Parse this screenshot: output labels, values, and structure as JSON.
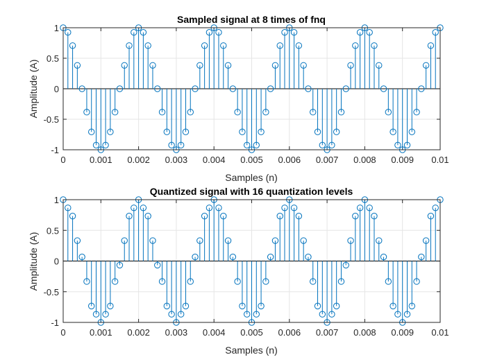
{
  "chart_data": [
    {
      "type": "stem",
      "title": "Sampled signal at 8 times of fnq",
      "xlabel": "Samples (n)",
      "ylabel": "Amplitude (A)",
      "xlim": [
        0,
        0.01
      ],
      "ylim": [
        -1,
        1
      ],
      "xticks": [
        "0",
        "0.001",
        "0.002",
        "0.003",
        "0.004",
        "0.005",
        "0.006",
        "0.007",
        "0.008",
        "0.009",
        "0.01"
      ],
      "yticks": [
        "-1",
        "-0.5",
        "0",
        "0.5",
        "1"
      ],
      "grid": true,
      "x": [
        0,
        0.000125,
        0.00025,
        0.000375,
        0.0005,
        0.000625,
        0.00075,
        0.000875,
        0.001,
        0.001125,
        0.00125,
        0.001375,
        0.0015,
        0.001625,
        0.00175,
        0.001875,
        0.002,
        0.002125,
        0.00225,
        0.002375,
        0.0025,
        0.002625,
        0.00275,
        0.002875,
        0.003,
        0.003125,
        0.00325,
        0.003375,
        0.0035,
        0.003625,
        0.00375,
        0.003875,
        0.004,
        0.004125,
        0.00425,
        0.004375,
        0.0045,
        0.004625,
        0.00475,
        0.004875,
        0.005,
        0.005125,
        0.00525,
        0.005375,
        0.0055,
        0.005625,
        0.00575,
        0.005875,
        0.006,
        0.006125,
        0.00625,
        0.006375,
        0.0065,
        0.006625,
        0.00675,
        0.006875,
        0.007,
        0.007125,
        0.00725,
        0.007375,
        0.0075,
        0.007625,
        0.00775,
        0.007875,
        0.008,
        0.008125,
        0.00825,
        0.008375,
        0.0085,
        0.008625,
        0.00875,
        0.008875,
        0.009,
        0.009125,
        0.00925,
        0.009375,
        0.0095,
        0.009625,
        0.00975,
        0.009875,
        0.01
      ],
      "values": [
        1,
        0.924,
        0.707,
        0.383,
        0,
        -0.383,
        -0.707,
        -0.924,
        -1,
        -0.924,
        -0.707,
        -0.383,
        0,
        0.383,
        0.707,
        0.924,
        1,
        0.924,
        0.707,
        0.383,
        0,
        -0.383,
        -0.707,
        -0.924,
        -1,
        -0.924,
        -0.707,
        -0.383,
        0,
        0.383,
        0.707,
        0.924,
        1,
        0.924,
        0.707,
        0.383,
        0,
        -0.383,
        -0.707,
        -0.924,
        -1,
        -0.924,
        -0.707,
        -0.383,
        0,
        0.383,
        0.707,
        0.924,
        1,
        0.924,
        0.707,
        0.383,
        0,
        -0.383,
        -0.707,
        -0.924,
        -1,
        -0.924,
        -0.707,
        -0.383,
        0,
        0.383,
        0.707,
        0.924,
        1,
        0.924,
        0.707,
        0.383,
        0,
        -0.383,
        -0.707,
        -0.924,
        -1,
        -0.924,
        -0.707,
        -0.383,
        0,
        0.383,
        0.707,
        0.924,
        1
      ]
    },
    {
      "type": "stem",
      "title": "Quantized signal with 16 quantization levels",
      "xlabel": "Samples (n)",
      "ylabel": "Amplitude (A)",
      "xlim": [
        0,
        0.01
      ],
      "ylim": [
        -1,
        1
      ],
      "xticks": [
        "0",
        "0.001",
        "0.002",
        "0.003",
        "0.004",
        "0.005",
        "0.006",
        "0.007",
        "0.008",
        "0.009",
        "0.01"
      ],
      "yticks": [
        "-1",
        "-0.5",
        "0",
        "0.5",
        "1"
      ],
      "grid": true,
      "x": [
        0,
        0.000125,
        0.00025,
        0.000375,
        0.0005,
        0.000625,
        0.00075,
        0.000875,
        0.001,
        0.001125,
        0.00125,
        0.001375,
        0.0015,
        0.001625,
        0.00175,
        0.001875,
        0.002,
        0.002125,
        0.00225,
        0.002375,
        0.0025,
        0.002625,
        0.00275,
        0.002875,
        0.003,
        0.003125,
        0.00325,
        0.003375,
        0.0035,
        0.003625,
        0.00375,
        0.003875,
        0.004,
        0.004125,
        0.00425,
        0.004375,
        0.0045,
        0.004625,
        0.00475,
        0.004875,
        0.005,
        0.005125,
        0.00525,
        0.005375,
        0.0055,
        0.005625,
        0.00575,
        0.005875,
        0.006,
        0.006125,
        0.00625,
        0.006375,
        0.0065,
        0.006625,
        0.00675,
        0.006875,
        0.007,
        0.007125,
        0.00725,
        0.007375,
        0.0075,
        0.007625,
        0.00775,
        0.007875,
        0.008,
        0.008125,
        0.00825,
        0.008375,
        0.0085,
        0.008625,
        0.00875,
        0.008875,
        0.009,
        0.009125,
        0.00925,
        0.009375,
        0.0095,
        0.009625,
        0.00975,
        0.009875,
        0.01
      ],
      "values": [
        1,
        0.867,
        0.733,
        0.333,
        0.067,
        -0.333,
        -0.733,
        -0.867,
        -1,
        -0.867,
        -0.733,
        -0.333,
        -0.067,
        0.333,
        0.733,
        0.867,
        1,
        0.867,
        0.733,
        0.333,
        -0.067,
        -0.333,
        -0.733,
        -0.867,
        -1,
        -0.867,
        -0.733,
        -0.333,
        0.067,
        0.333,
        0.733,
        0.867,
        1,
        0.867,
        0.733,
        0.333,
        0.067,
        -0.333,
        -0.733,
        -0.867,
        -1,
        -0.867,
        -0.733,
        -0.333,
        0.067,
        0.333,
        0.733,
        0.867,
        1,
        0.867,
        0.733,
        0.333,
        0.067,
        -0.333,
        -0.733,
        -0.867,
        -1,
        -0.867,
        -0.733,
        -0.333,
        -0.067,
        0.333,
        0.733,
        0.867,
        1,
        0.867,
        0.733,
        0.333,
        0.067,
        -0.333,
        -0.733,
        -0.867,
        -1,
        -0.867,
        -0.733,
        -0.333,
        0.067,
        0.333,
        0.733,
        0.867,
        1
      ]
    }
  ],
  "colors": {
    "stem": "#0072BD",
    "axis": "#262626",
    "grid": "#e5e5e5",
    "background": "#ffffff"
  }
}
